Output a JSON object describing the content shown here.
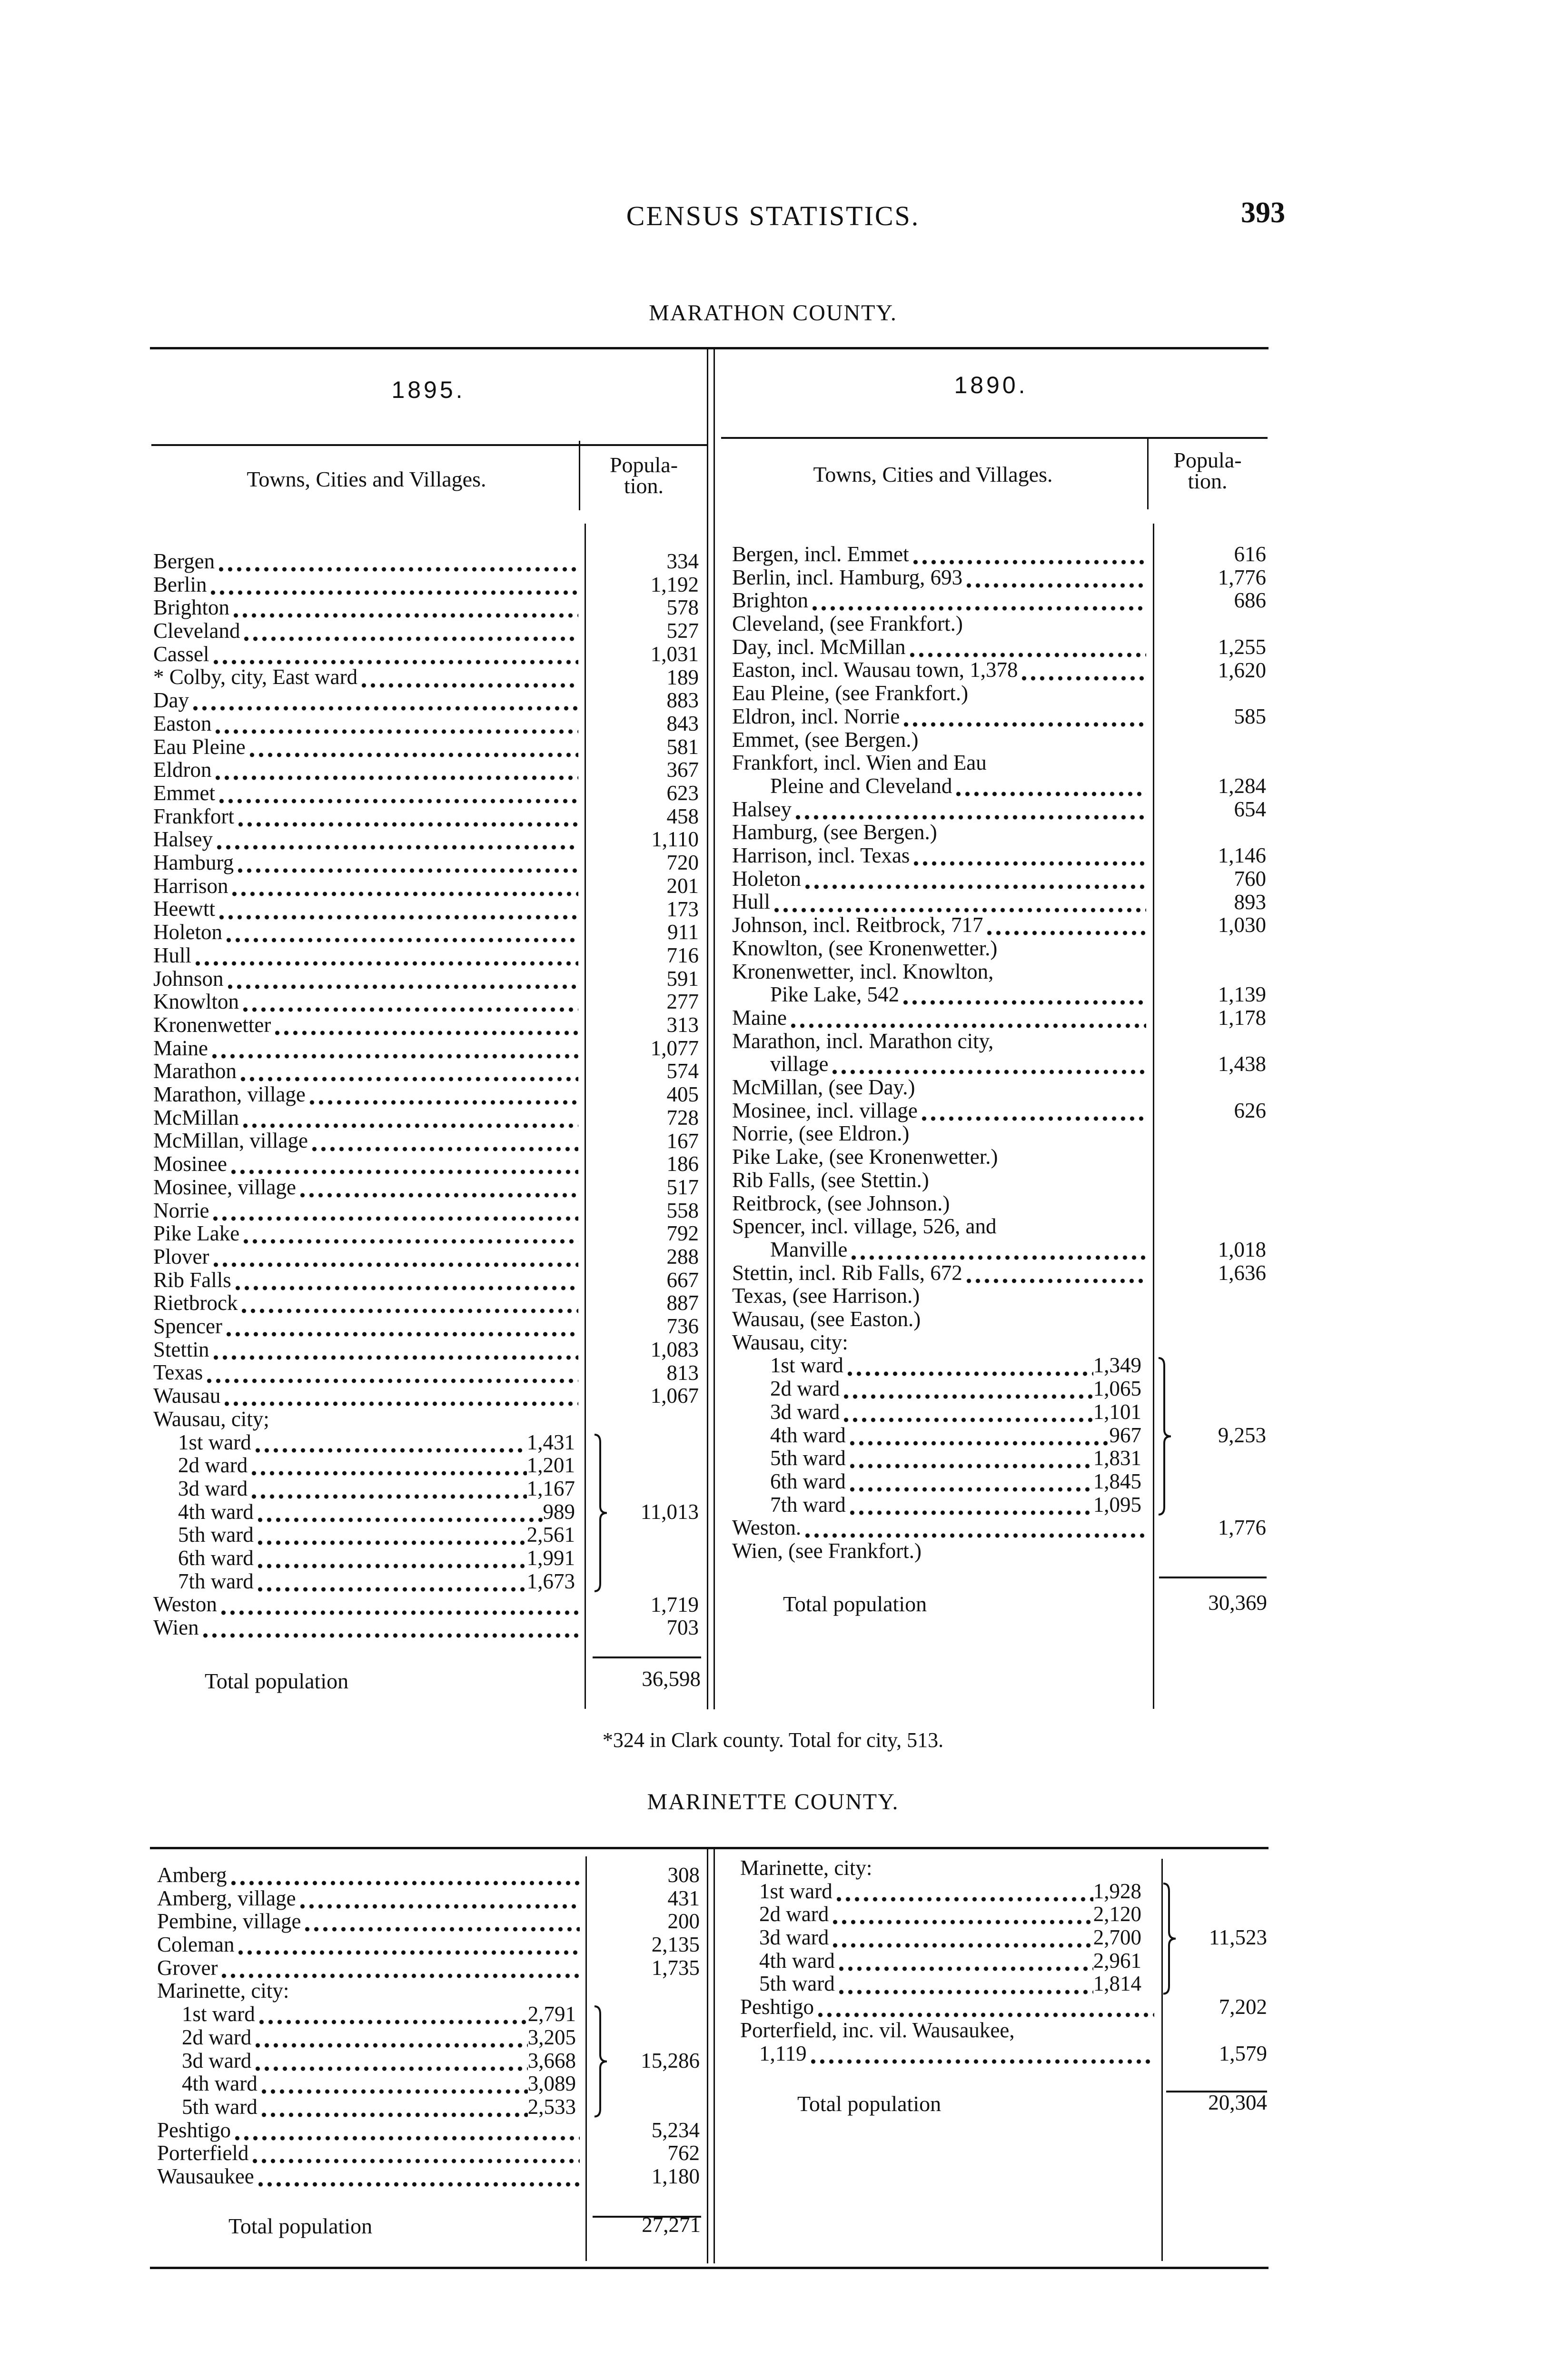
{
  "header": {
    "title": "CENSUS STATISTICS.",
    "page_number": "393"
  },
  "marathon": {
    "county": "MARATHON COUNTY.",
    "y1895": {
      "year": "1895.",
      "col_name": "Towns, Cities and Villages.",
      "col_pop_1": "Popula-",
      "col_pop_2": "tion.",
      "rows": [
        {
          "name": "Bergen",
          "value": "334"
        },
        {
          "name": "Berlin",
          "value": "1,192"
        },
        {
          "name": "Brighton",
          "value": "578"
        },
        {
          "name": "Cleveland",
          "value": "527"
        },
        {
          "name": "Cassel",
          "value": "1,031"
        },
        {
          "name": "* Colby, city, East ward",
          "value": "189"
        },
        {
          "name": "Day",
          "value": "883"
        },
        {
          "name": "Easton",
          "value": "843"
        },
        {
          "name": "Eau Pleine",
          "value": "581"
        },
        {
          "name": "Eldron",
          "value": "367"
        },
        {
          "name": "Emmet",
          "value": "623"
        },
        {
          "name": "Frankfort",
          "value": "458"
        },
        {
          "name": "Halsey",
          "value": "1,110"
        },
        {
          "name": "Hamburg",
          "value": "720"
        },
        {
          "name": "Harrison",
          "value": "201"
        },
        {
          "name": "Heewtt",
          "value": "173"
        },
        {
          "name": "Holeton",
          "value": "911"
        },
        {
          "name": "Hull",
          "value": "716"
        },
        {
          "name": "Johnson",
          "value": "591"
        },
        {
          "name": "Knowlton",
          "value": "277"
        },
        {
          "name": "Kronenwetter",
          "value": "313"
        },
        {
          "name": "Maine",
          "value": "1,077"
        },
        {
          "name": "Marathon",
          "value": "574"
        },
        {
          "name": "Marathon, village",
          "value": "405"
        },
        {
          "name": "McMillan",
          "value": "728"
        },
        {
          "name": "McMillan, village",
          "value": "167"
        },
        {
          "name": "Mosinee",
          "value": "186"
        },
        {
          "name": "Mosinee, village",
          "value": "517"
        },
        {
          "name": "Norrie",
          "value": "558"
        },
        {
          "name": "Pike Lake",
          "value": "792"
        },
        {
          "name": "Plover",
          "value": "288"
        },
        {
          "name": "Rib Falls",
          "value": "667"
        },
        {
          "name": "Rietbrock",
          "value": "887"
        },
        {
          "name": "Spencer",
          "value": "736"
        },
        {
          "name": "Stettin",
          "value": "1,083"
        },
        {
          "name": "Texas",
          "value": "813"
        },
        {
          "name": "Wausau",
          "value": "1,067"
        },
        {
          "name": "Wausau, city;",
          "total": "11,013",
          "wards": [
            {
              "name": "1st ward",
              "value": "1,431"
            },
            {
              "name": "2d  ward",
              "value": "1,201"
            },
            {
              "name": "3d  ward",
              "value": "1,167"
            },
            {
              "name": "4th ward",
              "value": "989"
            },
            {
              "name": "5th ward",
              "value": "2,561"
            },
            {
              "name": "6th ward",
              "value": "1,991"
            },
            {
              "name": "7th ward",
              "value": "1,673"
            }
          ]
        },
        {
          "name": "Weston",
          "value": "1,719"
        },
        {
          "name": "Wien",
          "value": "703"
        }
      ],
      "total_label": "Total population",
      "total_value": "36,598"
    },
    "y1890": {
      "year": "1890.",
      "col_name": "Towns, Cities and Villages.",
      "col_pop_1": "Popula-",
      "col_pop_2": "tion.",
      "rows": [
        {
          "name": "Bergen, incl. Emmet",
          "value": "616"
        },
        {
          "name": "Berlin, incl. Hamburg, 693",
          "value": "1,776"
        },
        {
          "name": "Brighton",
          "value": "686"
        },
        {
          "name": "Cleveland, (see Frankfort.)"
        },
        {
          "name": "Day, incl. McMillan",
          "value": "1,255"
        },
        {
          "name": "Easton, incl. Wausau town, 1,378",
          "value": "1,620"
        },
        {
          "name": "Eau Pleine, (see Frankfort.)"
        },
        {
          "name": "Eldron, incl. Norrie",
          "value": "585"
        },
        {
          "name": "Emmet, (see Bergen.)"
        },
        {
          "name": "Frankfort, incl.  Wien and Eau",
          "cont": "Pleine and Cleveland",
          "value": "1,284"
        },
        {
          "name": "Halsey",
          "value": "654"
        },
        {
          "name": "Hamburg, (see Bergen.)"
        },
        {
          "name": "Harrison, incl. Texas",
          "value": "1,146"
        },
        {
          "name": "Holeton",
          "value": "760"
        },
        {
          "name": "Hull",
          "value": "893"
        },
        {
          "name": "Johnson, incl.  Reitbrock, 717",
          "value": "1,030"
        },
        {
          "name": "Knowlton, (see Kronenwetter.)"
        },
        {
          "name": "Kronenwetter,  incl.  Knowlton,",
          "cont": "Pike Lake, 542",
          "value": "1,139"
        },
        {
          "name": "Maine",
          "value": "1,178"
        },
        {
          "name": "Marathon,  incl.  Marathon city,",
          "cont": "village",
          "value": "1,438"
        },
        {
          "name": "McMillan, (see  Day.)"
        },
        {
          "name": "Mosinee,  incl. village",
          "value": "626"
        },
        {
          "name": "Norrie, (see Eldron.)"
        },
        {
          "name": "Pike Lake,  (see Kronenwetter.)"
        },
        {
          "name": "Rib Falls, (see Stettin.)"
        },
        {
          "name": "Reitbrock, (see Johnson.)"
        },
        {
          "name": "Spencer,  incl.  village, 526,  and",
          "cont": "Manville",
          "value": "1,018"
        },
        {
          "name": "Stettin, incl. Rib Falls, 672",
          "value": "1,636"
        },
        {
          "name": "Texas,  (see Harrison.)"
        },
        {
          "name": "Wausau, (see Easton.)"
        },
        {
          "name": "Wausau, city:",
          "total": "9,253",
          "wards": [
            {
              "name": "1st ward",
              "value": "1,349"
            },
            {
              "name": "2d  ward",
              "value": "1,065"
            },
            {
              "name": "3d  ward",
              "value": "1,101"
            },
            {
              "name": "4th ward",
              "value": "967"
            },
            {
              "name": "5th ward",
              "value": "1,831"
            },
            {
              "name": "6th ward",
              "value": "1,845"
            },
            {
              "name": "7th ward",
              "value": "1,095"
            }
          ]
        },
        {
          "name": "Weston.",
          "value": "1,776"
        },
        {
          "name": "Wien,  (see  Frankfort.)"
        }
      ],
      "total_label": "Total population",
      "total_value": "30,369"
    },
    "footnote": "*324 in Clark county.   Total for city, 513."
  },
  "marinette": {
    "county": "MARINETTE COUNTY.",
    "y1895": {
      "rows": [
        {
          "name": "Amberg",
          "value": "308"
        },
        {
          "name": "Amberg, village",
          "value": "431"
        },
        {
          "name": "Pembine, village",
          "value": "200"
        },
        {
          "name": "Coleman",
          "value": "2,135"
        },
        {
          "name": "Grover",
          "value": "1,735"
        },
        {
          "name": "Marinette, city:",
          "total": "15,286",
          "wards": [
            {
              "name": "1st ward",
              "value": "2,791"
            },
            {
              "name": "2d   ward",
              "value": "3,205"
            },
            {
              "name": "3d   ward",
              "value": "3,668"
            },
            {
              "name": "4th ward",
              "value": "3,089"
            },
            {
              "name": "5th ward",
              "value": "2,533"
            }
          ]
        },
        {
          "name": "Peshtigo",
          "value": "5,234"
        },
        {
          "name": "Porterfield",
          "value": "762"
        },
        {
          "name": "Wausaukee",
          "value": "1,180"
        }
      ],
      "total_label": "Total population",
      "total_value": "27,271"
    },
    "y1890": {
      "rows": [
        {
          "name": "Marinette, city:",
          "total": "11,523",
          "wards": [
            {
              "name": "1st ward",
              "value": "1,928"
            },
            {
              "name": "2d  ward",
              "value": "2,120"
            },
            {
              "name": "3d  ward",
              "value": "2,700"
            },
            {
              "name": "4th ward",
              "value": "2,961"
            },
            {
              "name": "5th ward",
              "value": "1,814"
            }
          ]
        },
        {
          "name": "Peshtigo",
          "value": "7,202"
        },
        {
          "name": "Porterfield, inc. vil. Wausaukee,",
          "cont": "1,119",
          "value": "1,579"
        }
      ],
      "total_label": "Total population",
      "total_value": "20,304"
    }
  }
}
